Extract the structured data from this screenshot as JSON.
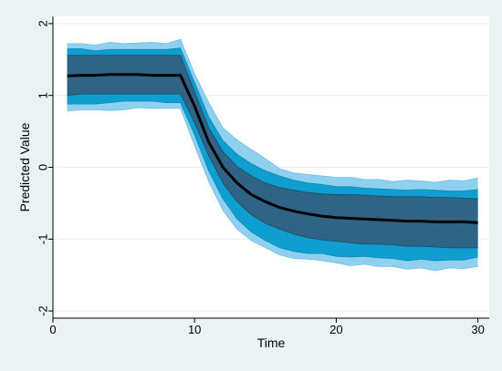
{
  "chart_data": {
    "type": "area",
    "xlabel": "Time",
    "ylabel": "Predicted Value",
    "xlim": [
      0,
      30.8
    ],
    "ylim": [
      -2.1,
      2.1
    ],
    "x_ticks": [
      0,
      10,
      20,
      30
    ],
    "y_ticks": [
      -2,
      -1,
      0,
      1,
      2
    ],
    "grid": "horizontal",
    "colors": {
      "background": "#eaf2f3",
      "plot_background": "#ffffff",
      "gridline": "#e5efef",
      "band_outer": "#8fd0ee",
      "band_middle": "#0e9ed0",
      "band_inner": "#2f6486",
      "line": "#000000"
    },
    "x": [
      1,
      2,
      3,
      4,
      5,
      6,
      7,
      8,
      9,
      10,
      11,
      12,
      13,
      14,
      15,
      16,
      17,
      18,
      19,
      20,
      21,
      22,
      23,
      24,
      25,
      26,
      27,
      28,
      29,
      30
    ],
    "series": [
      {
        "role": "mean",
        "values": [
          1.27,
          1.28,
          1.28,
          1.29,
          1.29,
          1.29,
          1.28,
          1.28,
          1.28,
          0.85,
          0.35,
          0.0,
          -0.22,
          -0.38,
          -0.48,
          -0.56,
          -0.61,
          -0.65,
          -0.68,
          -0.7,
          -0.71,
          -0.72,
          -0.73,
          -0.74,
          -0.75,
          -0.75,
          -0.76,
          -0.76,
          -0.76,
          -0.77
        ]
      },
      {
        "role": "outer_upper",
        "values": [
          1.72,
          1.72,
          1.7,
          1.74,
          1.72,
          1.73,
          1.74,
          1.72,
          1.78,
          1.3,
          0.9,
          0.55,
          0.38,
          0.25,
          0.12,
          -0.02,
          -0.08,
          -0.1,
          -0.12,
          -0.14,
          -0.14,
          -0.17,
          -0.17,
          -0.2,
          -0.18,
          -0.19,
          -0.21,
          -0.18,
          -0.19,
          -0.15
        ]
      },
      {
        "role": "outer_lower",
        "values": [
          0.78,
          0.8,
          0.8,
          0.79,
          0.8,
          0.83,
          0.82,
          0.82,
          0.82,
          0.3,
          -0.2,
          -0.6,
          -0.86,
          -1.02,
          -1.12,
          -1.22,
          -1.27,
          -1.28,
          -1.3,
          -1.33,
          -1.37,
          -1.35,
          -1.38,
          -1.38,
          -1.42,
          -1.4,
          -1.44,
          -1.4,
          -1.41,
          -1.38
        ]
      },
      {
        "role": "middle_upper",
        "values": [
          1.65,
          1.65,
          1.62,
          1.64,
          1.64,
          1.64,
          1.64,
          1.64,
          1.66,
          1.18,
          0.7,
          0.37,
          0.18,
          0.05,
          -0.05,
          -0.12,
          -0.18,
          -0.22,
          -0.24,
          -0.27,
          -0.27,
          -0.29,
          -0.3,
          -0.31,
          -0.32,
          -0.31,
          -0.32,
          -0.33,
          -0.33,
          -0.31
        ]
      },
      {
        "role": "middle_lower",
        "values": [
          0.88,
          0.88,
          0.88,
          0.9,
          0.92,
          0.92,
          0.92,
          0.9,
          0.9,
          0.45,
          -0.05,
          -0.44,
          -0.72,
          -0.9,
          -1.02,
          -1.12,
          -1.17,
          -1.2,
          -1.2,
          -1.24,
          -1.25,
          -1.24,
          -1.26,
          -1.27,
          -1.3,
          -1.28,
          -1.3,
          -1.29,
          -1.29,
          -1.25
        ]
      },
      {
        "role": "inner_upper",
        "values": [
          1.56,
          1.56,
          1.56,
          1.56,
          1.56,
          1.56,
          1.56,
          1.56,
          1.56,
          1.05,
          0.55,
          0.22,
          0.01,
          -0.12,
          -0.22,
          -0.28,
          -0.32,
          -0.35,
          -0.37,
          -0.38,
          -0.38,
          -0.39,
          -0.4,
          -0.41,
          -0.41,
          -0.41,
          -0.42,
          -0.42,
          -0.43,
          -0.44
        ]
      },
      {
        "role": "inner_lower",
        "values": [
          1.0,
          1.02,
          1.02,
          1.02,
          1.02,
          1.02,
          1.02,
          1.02,
          1.02,
          0.62,
          0.16,
          -0.22,
          -0.48,
          -0.66,
          -0.78,
          -0.86,
          -0.93,
          -0.98,
          -1.01,
          -1.03,
          -1.05,
          -1.07,
          -1.07,
          -1.08,
          -1.1,
          -1.1,
          -1.11,
          -1.12,
          -1.12,
          -1.12
        ]
      }
    ]
  }
}
